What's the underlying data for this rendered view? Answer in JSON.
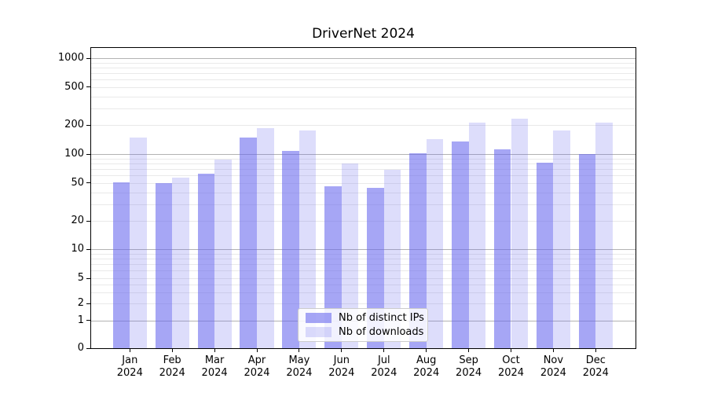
{
  "title": "DriverNet 2024",
  "chart_data": {
    "type": "bar",
    "title": "DriverNet 2024",
    "categories": [
      "Jan 2024",
      "Feb 2024",
      "Mar 2024",
      "Apr 2024",
      "May 2024",
      "Jun 2024",
      "Jul 2024",
      "Aug 2024",
      "Sep 2024",
      "Oct 2024",
      "Nov 2024",
      "Dec 2024"
    ],
    "series": [
      {
        "name": "Nb of distinct IPs",
        "color": "rgba(101,101,237,0.58)",
        "values": [
          51,
          50,
          62,
          148,
          108,
          46,
          44,
          102,
          135,
          112,
          81,
          100
        ]
      },
      {
        "name": "Nb of downloads",
        "color": "rgba(101,101,237,0.22)",
        "values": [
          150,
          57,
          88,
          188,
          176,
          80,
          68,
          142,
          213,
          234,
          176,
          213
        ]
      }
    ],
    "yscale": "symlog",
    "yticks": [
      0,
      1,
      2,
      5,
      10,
      20,
      50,
      100,
      200,
      500,
      1000
    ],
    "ylim": [
      0,
      1300
    ],
    "xlabel": "",
    "ylabel": "",
    "grid": true,
    "legend_position": "lower center"
  },
  "legend": {
    "items": [
      {
        "label": "Nb of distinct IPs"
      },
      {
        "label": "Nb of downloads"
      }
    ]
  }
}
